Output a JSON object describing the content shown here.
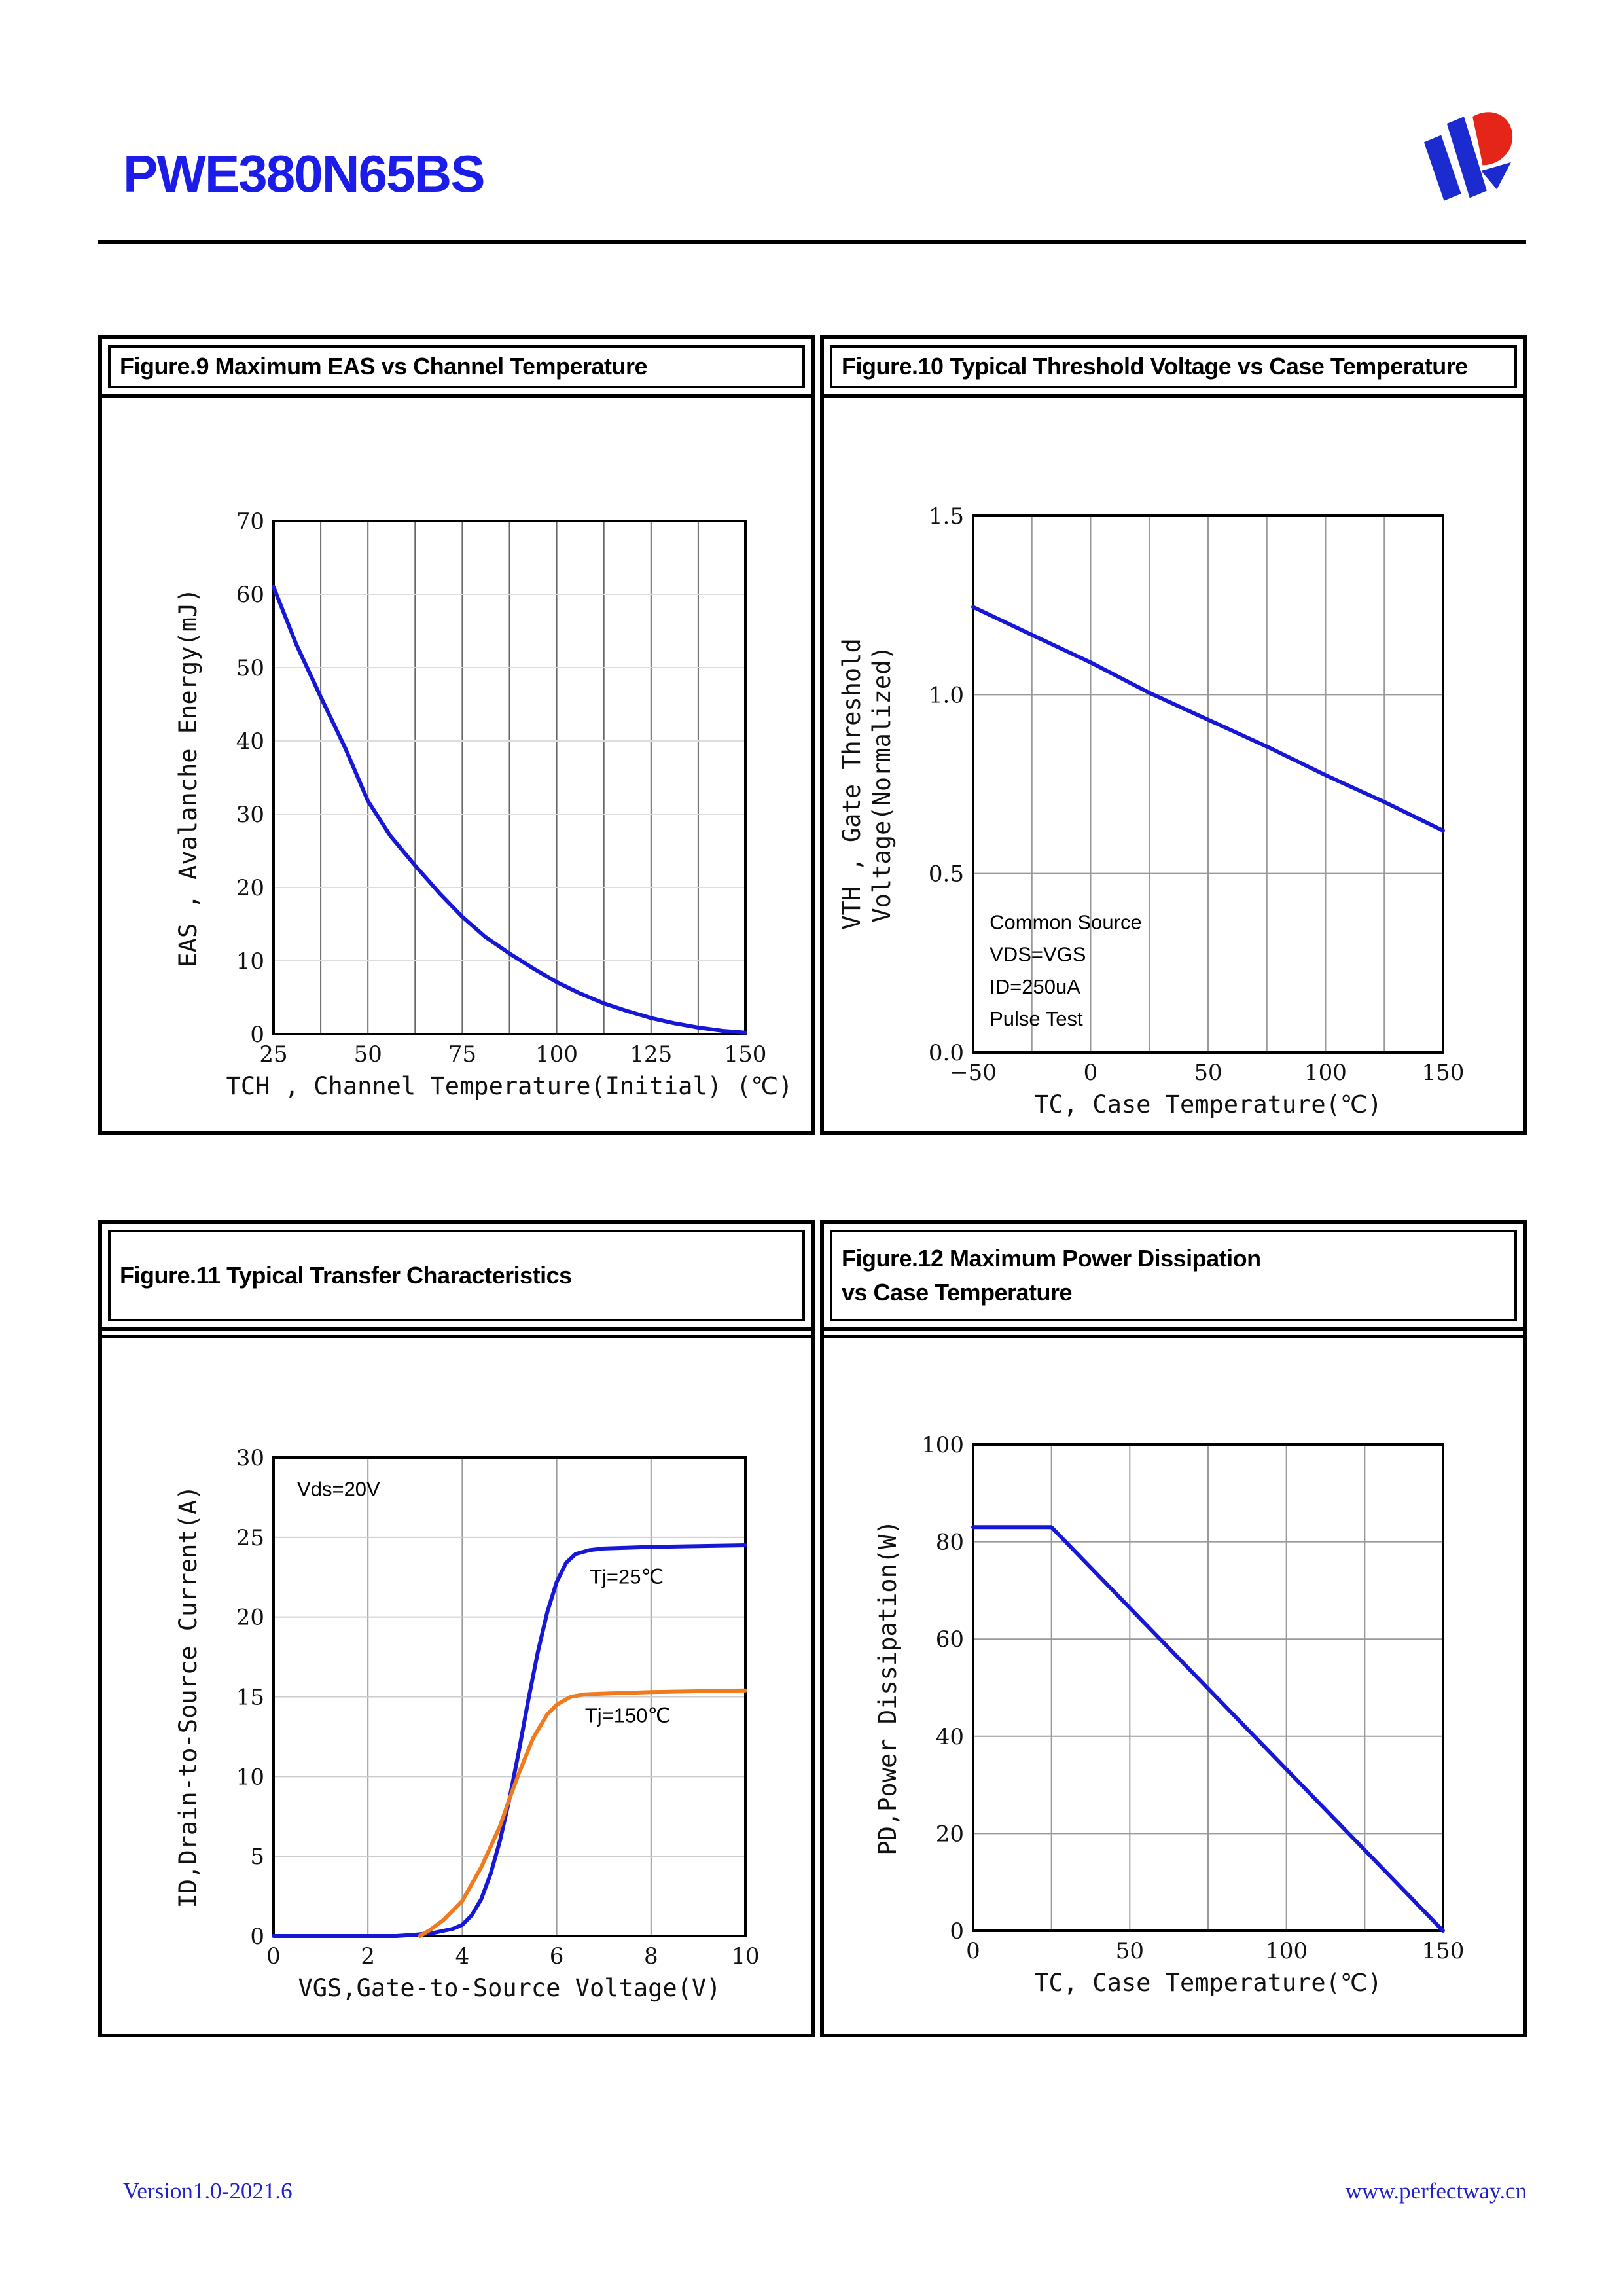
{
  "header": {
    "part_number": "PWE380N65BS"
  },
  "footer": {
    "version": "Version1.0-2021.6",
    "website": "www.perfectway.cn"
  },
  "colors": {
    "curve_blue": "#1717d6",
    "curve_orange": "#f07a1e",
    "header_blue": "#1c1ce8",
    "footer_blue": "#2121cc",
    "logo_blue": "#1c2bd0",
    "logo_red": "#e62519"
  },
  "chart_data": [
    {
      "type": "line",
      "panel_title_lines": [
        "Figure.9 Maximum EAS vs Channel Temperature"
      ],
      "xlabel": "TCH , Channel Temperature(Initial) (℃)",
      "ylabel_lines": [
        "EAS , Avalanche Energy(mJ)"
      ],
      "xlim": [
        25,
        150
      ],
      "ylim": [
        0,
        70
      ],
      "xticks": [
        [
          25,
          "25"
        ],
        [
          50,
          "50"
        ],
        [
          75,
          "75"
        ],
        [
          100,
          "100"
        ],
        [
          125,
          "125"
        ],
        [
          150,
          "150"
        ]
      ],
      "yticks": [
        [
          0,
          "0"
        ],
        [
          10,
          "10"
        ],
        [
          20,
          "20"
        ],
        [
          30,
          "30"
        ],
        [
          40,
          "40"
        ],
        [
          50,
          "50"
        ],
        [
          60,
          "60"
        ],
        [
          70,
          "70"
        ]
      ],
      "xgrid": [
        37.5,
        50,
        62.5,
        75,
        87.5,
        100,
        112.5,
        125,
        137.5
      ],
      "ygrid": [
        10,
        20,
        30,
        40,
        50,
        60
      ],
      "grid_v_color": "#666666",
      "grid_h_color": "#dddddd",
      "legend_position": "none",
      "series": [
        {
          "name": "eas-vs-tch",
          "color": "#1717d6",
          "points": [
            [
              25,
              61
            ],
            [
              31,
              53.2
            ],
            [
              37.5,
              46
            ],
            [
              44,
              39
            ],
            [
              50,
              31.8
            ],
            [
              56,
              27
            ],
            [
              62.5,
              23
            ],
            [
              69,
              19.2
            ],
            [
              75,
              16
            ],
            [
              81,
              13.3
            ],
            [
              87.5,
              11
            ],
            [
              94,
              8.9
            ],
            [
              100,
              7.1
            ],
            [
              106,
              5.6
            ],
            [
              112.5,
              4.2
            ],
            [
              119,
              3.1
            ],
            [
              125,
              2.2
            ],
            [
              131,
              1.5
            ],
            [
              137.5,
              0.9
            ],
            [
              144,
              0.45
            ],
            [
              150,
              0.2
            ]
          ]
        }
      ],
      "annotations": []
    },
    {
      "type": "line",
      "panel_title_lines": [
        "Figure.10 Typical Threshold Voltage vs Case Temperature"
      ],
      "xlabel": "TC, Case Temperature(℃)",
      "ylabel_lines": [
        "VTH , Gate Threshold",
        "Voltage(Normalized)"
      ],
      "xlim": [
        -50,
        150
      ],
      "ylim": [
        0,
        1.5
      ],
      "xticks": [
        [
          -50,
          "−50"
        ],
        [
          0,
          "0"
        ],
        [
          50,
          "50"
        ],
        [
          100,
          "100"
        ],
        [
          150,
          "150"
        ]
      ],
      "yticks": [
        [
          0,
          "0.0"
        ],
        [
          0.5,
          "0.5"
        ],
        [
          1.0,
          "1.0"
        ],
        [
          1.5,
          "1.5"
        ]
      ],
      "xgrid": [
        -25,
        0,
        25,
        50,
        75,
        100,
        125
      ],
      "ygrid": [
        0.5,
        1.0
      ],
      "grid_v_color": "#999999",
      "grid_h_color": "#999999",
      "legend_position": "none",
      "series": [
        {
          "name": "vth-normalized",
          "color": "#1717d6",
          "points": [
            [
              -50,
              1.245
            ],
            [
              -25,
              1.167
            ],
            [
              0,
              1.09
            ],
            [
              25,
              1.005
            ],
            [
              50,
              0.93
            ],
            [
              75,
              0.855
            ],
            [
              100,
              0.775
            ],
            [
              125,
              0.7
            ],
            [
              150,
              0.62
            ]
          ]
        }
      ],
      "annotations": [
        {
          "text": "Common Source",
          "x": -43,
          "y": 0.345
        },
        {
          "text": "VDS=VGS",
          "x": -43,
          "y": 0.255
        },
        {
          "text": "ID=250uA",
          "x": -43,
          "y": 0.165
        },
        {
          "text": "Pulse Test",
          "x": -43,
          "y": 0.075
        }
      ]
    },
    {
      "type": "line",
      "panel_title_lines": [
        "Figure.11 Typical Transfer Characteristics"
      ],
      "xlabel": "VGS,Gate-to-Source Voltage(V)",
      "ylabel_lines": [
        "ID,Drain-to-Source Current(A)"
      ],
      "xlim": [
        0,
        10
      ],
      "ylim": [
        0,
        30
      ],
      "xticks": [
        [
          0,
          "0"
        ],
        [
          2,
          "2"
        ],
        [
          4,
          "4"
        ],
        [
          6,
          "6"
        ],
        [
          8,
          "8"
        ],
        [
          10,
          "10"
        ]
      ],
      "yticks": [
        [
          0,
          "0"
        ],
        [
          5,
          "5"
        ],
        [
          10,
          "10"
        ],
        [
          15,
          "15"
        ],
        [
          20,
          "20"
        ],
        [
          25,
          "25"
        ],
        [
          30,
          "30"
        ]
      ],
      "xgrid": [
        2,
        4,
        6,
        8
      ],
      "ygrid": [
        5,
        10,
        15,
        20,
        25
      ],
      "grid_v_color": "#999999",
      "grid_h_color": "#cccccc",
      "legend_position": "none",
      "series": [
        {
          "name": "tj-25c",
          "color": "#1717d6",
          "points": [
            [
              0,
              0
            ],
            [
              2.6,
              0
            ],
            [
              3.0,
              0.08
            ],
            [
              3.4,
              0.2
            ],
            [
              3.8,
              0.45
            ],
            [
              4.0,
              0.7
            ],
            [
              4.2,
              1.3
            ],
            [
              4.4,
              2.3
            ],
            [
              4.6,
              3.9
            ],
            [
              4.8,
              6.0
            ],
            [
              5.0,
              8.6
            ],
            [
              5.2,
              11.6
            ],
            [
              5.4,
              14.8
            ],
            [
              5.6,
              17.8
            ],
            [
              5.8,
              20.3
            ],
            [
              6.0,
              22.2
            ],
            [
              6.2,
              23.4
            ],
            [
              6.4,
              23.95
            ],
            [
              6.7,
              24.2
            ],
            [
              7.0,
              24.3
            ],
            [
              8.0,
              24.4
            ],
            [
              9.0,
              24.45
            ],
            [
              10,
              24.5
            ]
          ]
        },
        {
          "name": "tj-150c",
          "color": "#f07a1e",
          "points": [
            [
              3.1,
              0
            ],
            [
              3.3,
              0.35
            ],
            [
              3.6,
              1.0
            ],
            [
              4.0,
              2.2
            ],
            [
              4.4,
              4.3
            ],
            [
              4.8,
              6.9
            ],
            [
              5.0,
              8.6
            ],
            [
              5.2,
              10.2
            ],
            [
              5.5,
              12.4
            ],
            [
              5.8,
              13.9
            ],
            [
              6.0,
              14.5
            ],
            [
              6.3,
              15.0
            ],
            [
              6.6,
              15.15
            ],
            [
              7.0,
              15.2
            ],
            [
              8.0,
              15.3
            ],
            [
              10,
              15.4
            ]
          ]
        }
      ],
      "annotations": [
        {
          "text": "Vds=20V",
          "x": 0.5,
          "y": 27.6
        },
        {
          "text": "Tj=25℃",
          "x": 6.7,
          "y": 22.1
        },
        {
          "text": "Tj=150℃",
          "x": 6.6,
          "y": 13.4
        }
      ]
    },
    {
      "type": "line",
      "panel_title_lines": [
        "Figure.12 Maximum Power Dissipation",
        "vs Case Temperature"
      ],
      "xlabel": "TC, Case Temperature(℃)",
      "ylabel_lines": [
        "PD,Power Dissipation(W)"
      ],
      "xlim": [
        0,
        150
      ],
      "ylim": [
        0,
        100
      ],
      "xticks": [
        [
          0,
          "0"
        ],
        [
          50,
          "50"
        ],
        [
          100,
          "100"
        ],
        [
          150,
          "150"
        ]
      ],
      "yticks": [
        [
          0,
          "0"
        ],
        [
          20,
          "20"
        ],
        [
          40,
          "40"
        ],
        [
          60,
          "60"
        ],
        [
          80,
          "80"
        ],
        [
          100,
          "100"
        ]
      ],
      "xgrid": [
        25,
        50,
        75,
        100,
        125
      ],
      "ygrid": [
        20,
        40,
        60,
        80
      ],
      "grid_v_color": "#999999",
      "grid_h_color": "#999999",
      "legend_position": "none",
      "series": [
        {
          "name": "pd-vs-tc",
          "color": "#1717d6",
          "points": [
            [
              0,
              83
            ],
            [
              25,
              83
            ],
            [
              150,
              0
            ]
          ]
        }
      ],
      "annotations": []
    }
  ]
}
